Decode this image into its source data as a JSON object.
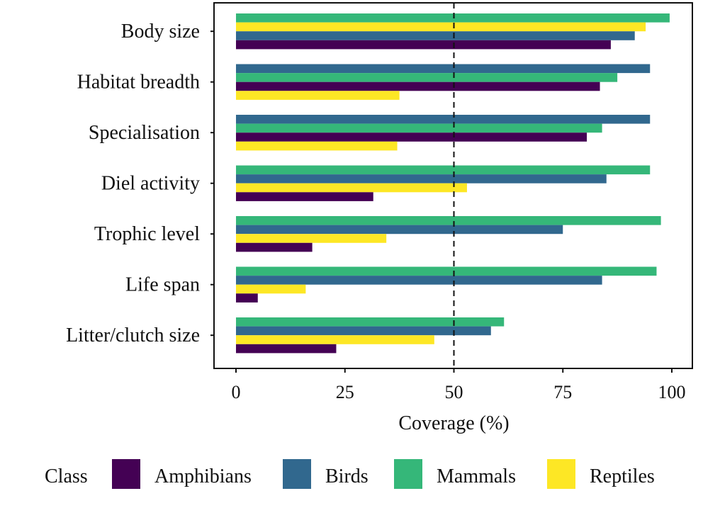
{
  "chart_data": {
    "type": "bar",
    "orientation": "horizontal",
    "xlabel": "Coverage (%)",
    "xlim": [
      -5,
      105
    ],
    "xticks": [
      0,
      25,
      50,
      75,
      100
    ],
    "reference_line": 50,
    "grid": false,
    "legend_position": "bottom",
    "legend_title": "Class",
    "categories": [
      "Body size",
      "Habitat breadth",
      "Specialisation",
      "Diel activity",
      "Trophic level",
      "Life span",
      "Litter/clutch size"
    ],
    "series": [
      {
        "name": "Amphibians",
        "color": "#440154",
        "values": [
          86,
          83.5,
          80.5,
          31.5,
          17.5,
          5,
          23
        ]
      },
      {
        "name": "Birds",
        "color": "#31688E",
        "values": [
          91.5,
          95,
          95,
          85,
          75,
          84,
          58.5
        ]
      },
      {
        "name": "Mammals",
        "color": "#35B779",
        "values": [
          99.5,
          87.5,
          84,
          95,
          97.5,
          96.5,
          61.5
        ]
      },
      {
        "name": "Reptiles",
        "color": "#FDE725",
        "values": [
          94,
          37.5,
          37,
          53,
          34.5,
          16,
          45.5
        ]
      }
    ],
    "bar_order": [
      [
        "Mammals",
        "Reptiles",
        "Birds",
        "Amphibians"
      ],
      [
        "Birds",
        "Mammals",
        "Amphibians",
        "Reptiles"
      ],
      [
        "Birds",
        "Mammals",
        "Amphibians",
        "Reptiles"
      ],
      [
        "Mammals",
        "Birds",
        "Reptiles",
        "Amphibians"
      ],
      [
        "Mammals",
        "Birds",
        "Reptiles",
        "Amphibians"
      ],
      [
        "Mammals",
        "Birds",
        "Reptiles",
        "Amphibians"
      ],
      [
        "Mammals",
        "Birds",
        "Reptiles",
        "Amphibians"
      ]
    ]
  }
}
